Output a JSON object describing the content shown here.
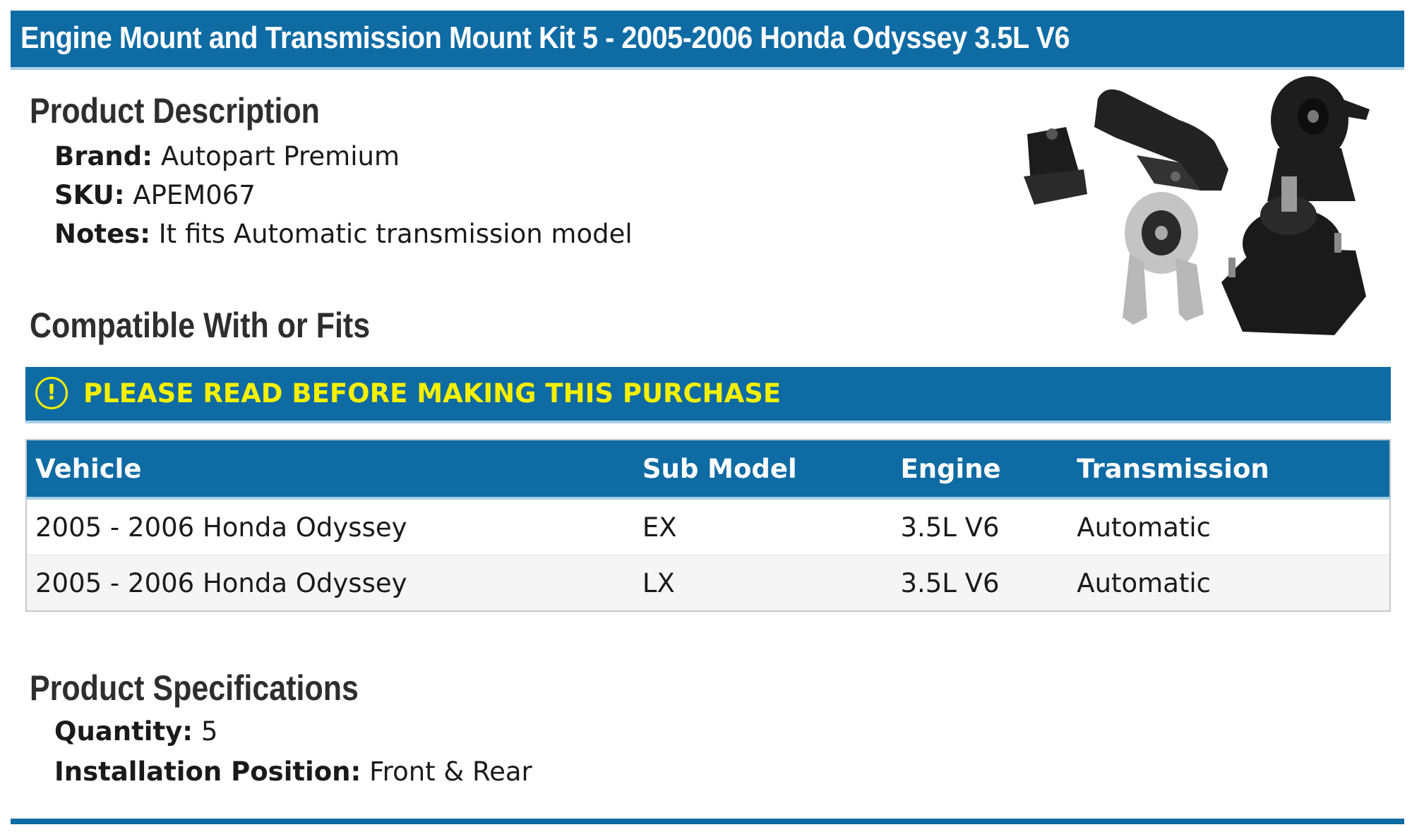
{
  "title": "Engine Mount and Transmission Mount Kit 5 - 2005-2006 Honda Odyssey 3.5L V6",
  "description": {
    "heading": "Product Description",
    "brand_label": "Brand:",
    "brand_value": "Autopart Premium",
    "sku_label": "SKU:",
    "sku_value": "APEM067",
    "notes_label": "Notes:",
    "notes_value": "It fits Automatic transmission model"
  },
  "compat": {
    "heading": "Compatible With or Fits",
    "notice_icon": "exclamation-circle-icon",
    "notice_text": "PLEASE READ BEFORE MAKING THIS PURCHASE",
    "columns": [
      "Vehicle",
      "Sub Model",
      "Engine",
      "Transmission"
    ],
    "rows": [
      {
        "vehicle": "2005 - 2006 Honda Odyssey",
        "sub_model": "EX",
        "engine": "3.5L V6",
        "transmission": "Automatic"
      },
      {
        "vehicle": "2005 - 2006 Honda Odyssey",
        "sub_model": "LX",
        "engine": "3.5L V6",
        "transmission": "Automatic"
      }
    ]
  },
  "specs": {
    "heading": "Product Specifications",
    "quantity_label": "Quantity:",
    "quantity_value": "5",
    "position_label": "Installation Position:",
    "position_value": "Front & Rear"
  },
  "colors": {
    "accent": "#0e6ba4",
    "accent_light": "#a9cfe6",
    "notice_text": "#f5f000"
  }
}
